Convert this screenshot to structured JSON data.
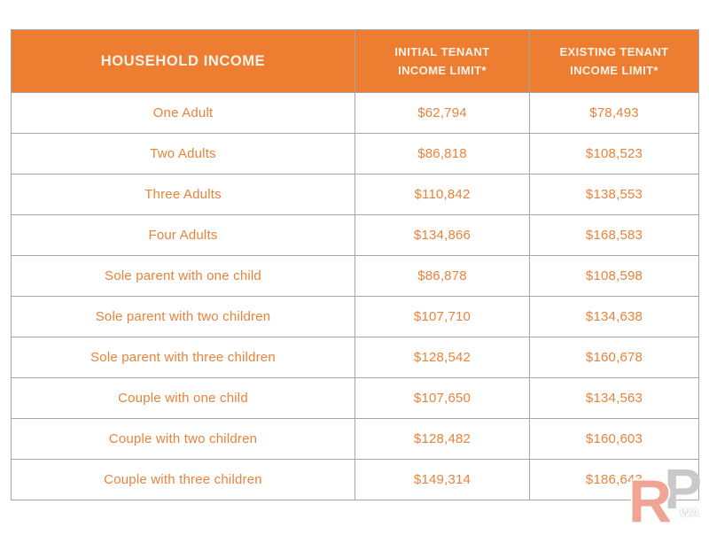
{
  "colors": {
    "header_bg": "#ED7D31",
    "header_text": "#FBF3EA",
    "cell_text": "#E8833B",
    "border": "#A6A6A6",
    "watermark_r": "#E35030",
    "watermark_p": "#C9C9C9",
    "watermark_wa": "#FFFFFF"
  },
  "table": {
    "header_display": [
      "HOUSEHOLD INCOME",
      "INITIAL TENANT\nINCOME LIMIT*",
      "EXISTING TENANT\nINCOME LIMIT*"
    ]
  },
  "watermark": {
    "letter_r": "R",
    "letter_p": "P",
    "suffix": "WA"
  },
  "chart_data": {
    "type": "table",
    "title": "",
    "columns": [
      "HOUSEHOLD INCOME",
      "INITIAL TENANT INCOME LIMIT*",
      "EXISTING TENANT INCOME LIMIT*"
    ],
    "categories": [
      "One Adult",
      "Two Adults",
      "Three Adults",
      "Four Adults",
      "Sole parent with one child",
      "Sole parent with two children",
      "Sole parent with three children",
      "Couple with one child",
      "Couple with two children",
      "Couple with three children"
    ],
    "series": [
      {
        "name": "INITIAL TENANT INCOME LIMIT*",
        "unit": "$",
        "values": [
          62794,
          86818,
          110842,
          134866,
          86878,
          107710,
          128542,
          107650,
          128482,
          149314
        ]
      },
      {
        "name": "EXISTING TENANT INCOME LIMIT*",
        "unit": "$",
        "values": [
          78493,
          108523,
          138553,
          168583,
          108598,
          134638,
          160678,
          134563,
          160603,
          186643
        ]
      }
    ],
    "layout": {
      "grid": true,
      "header_fill": "#ED7D31",
      "body_text_color": "#E8833B"
    }
  }
}
